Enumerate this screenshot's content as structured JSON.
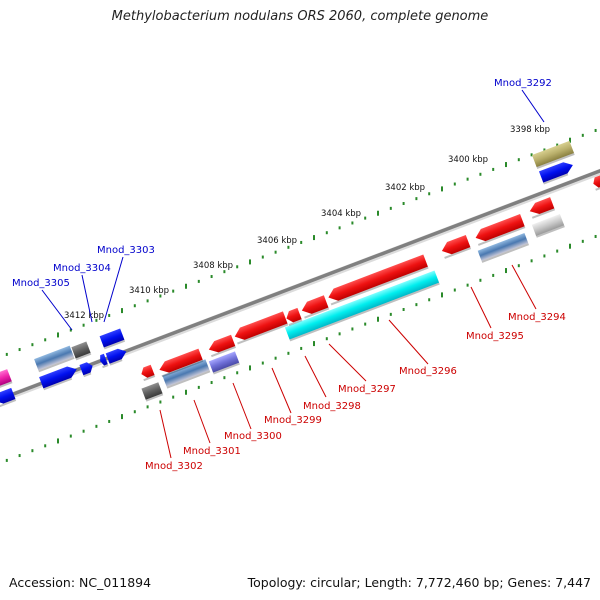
{
  "title": "Methylobacterium nodulans ORS 2060, complete genome",
  "footer": {
    "accession": "Accession: NC_011894",
    "summary": "Topology: circular; Length: 7,772,460 bp; Genes: 7,447"
  },
  "colors": {
    "backbone": "#808080",
    "tick": "#2a8a2a",
    "blue_label": "#0000cc",
    "red_label": "#cc0000",
    "red_gene": "#ee1111",
    "blue_gene": "#0010ee",
    "cyan_gene": "#00eeee",
    "olive_gene": "#b8ae6a",
    "purple_gene": "#7070d8",
    "magenta_gene": "#ee22aa"
  },
  "ruler": [
    {
      "label": "3398 kbp",
      "kbp": 3398
    },
    {
      "label": "3400 kbp",
      "kbp": 3400
    },
    {
      "label": "3402 kbp",
      "kbp": 3402
    },
    {
      "label": "3404 kbp",
      "kbp": 3404
    },
    {
      "label": "3406 kbp",
      "kbp": 3406
    },
    {
      "label": "3408 kbp",
      "kbp": 3408
    },
    {
      "label": "3410 kbp",
      "kbp": 3410
    },
    {
      "label": "3412 kbp",
      "kbp": 3412
    }
  ],
  "gene_labels": [
    {
      "label": "Mnod_3292",
      "strand": "top"
    },
    {
      "label": "Mnod_3303",
      "strand": "top"
    },
    {
      "label": "Mnod_3304",
      "strand": "top"
    },
    {
      "label": "Mnod_3305",
      "strand": "top"
    },
    {
      "label": "Mnod_3294",
      "strand": "bottom"
    },
    {
      "label": "Mnod_3295",
      "strand": "bottom"
    },
    {
      "label": "Mnod_3296",
      "strand": "bottom"
    },
    {
      "label": "Mnod_3297",
      "strand": "bottom"
    },
    {
      "label": "Mnod_3298",
      "strand": "bottom"
    },
    {
      "label": "Mnod_3299",
      "strand": "bottom"
    },
    {
      "label": "Mnod_3300",
      "strand": "bottom"
    },
    {
      "label": "Mnod_3301",
      "strand": "bottom"
    },
    {
      "label": "Mnod_3302",
      "strand": "bottom"
    }
  ],
  "genes": [
    {
      "name": "gene-mnod-3292",
      "color": "olive"
    },
    {
      "name": "gene-mnod-3293",
      "color": "blue"
    },
    {
      "name": "gene-mnod-3294",
      "color": "gray"
    },
    {
      "name": "gene-mnod-3295",
      "color": "steel"
    },
    {
      "name": "gene-mnod-3296",
      "color": "cyan"
    },
    {
      "name": "gene-mnod-3297",
      "color": "red"
    },
    {
      "name": "gene-mnod-3298",
      "color": "red"
    },
    {
      "name": "gene-mnod-3299",
      "color": "red"
    },
    {
      "name": "gene-mnod-3300",
      "color": "purple"
    },
    {
      "name": "gene-mnod-3301",
      "color": "steel"
    },
    {
      "name": "gene-mnod-3302",
      "color": "dark-gray"
    },
    {
      "name": "gene-mnod-3303",
      "color": "blue"
    },
    {
      "name": "gene-mnod-3304",
      "color": "dark-gray"
    },
    {
      "name": "gene-mnod-3305",
      "color": "steel"
    },
    {
      "name": "gene-magenta",
      "color": "magenta"
    }
  ]
}
